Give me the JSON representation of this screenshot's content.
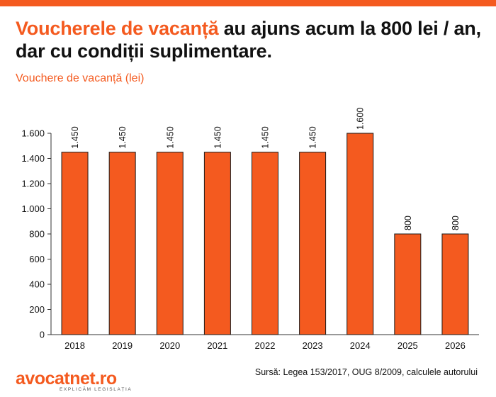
{
  "header": {
    "title_highlight": "Voucherele de vacanță",
    "title_rest": " au ajuns acum la 800 lei / an, dar cu condiții suplimentare.",
    "subtitle": "Vouchere de vacanță (lei)"
  },
  "footer": {
    "logo_name": "avocatnet.ro",
    "logo_tagline": "EXPLICĂM LEGISLAȚIA",
    "source": "Sursă: Legea 153/2017, OUG 8/2009, calculele autorului"
  },
  "colors": {
    "accent": "#f45a1f",
    "bar": "#f45a1f",
    "bar_outline": "#1a1a1a"
  },
  "chart_data": {
    "type": "bar",
    "title": "Vouchere de vacanță (lei)",
    "categories": [
      "2018",
      "2019",
      "2020",
      "2021",
      "2022",
      "2023",
      "2024",
      "2025",
      "2026"
    ],
    "values": [
      1450,
      1450,
      1450,
      1450,
      1450,
      1450,
      1600,
      800,
      800
    ],
    "data_labels": [
      "1.450",
      "1.450",
      "1.450",
      "1.450",
      "1.450",
      "1.450",
      "1.600",
      "800",
      "800"
    ],
    "yticks": [
      0,
      200,
      400,
      600,
      800,
      1000,
      1200,
      1400,
      1600
    ],
    "ytick_labels": [
      "0",
      "200",
      "400",
      "600",
      "800",
      "1.000",
      "1.200",
      "1.400",
      "1.600"
    ],
    "ylim": [
      0,
      1600
    ],
    "xlabel": "",
    "ylabel": "",
    "grid": false,
    "legend": "none"
  }
}
